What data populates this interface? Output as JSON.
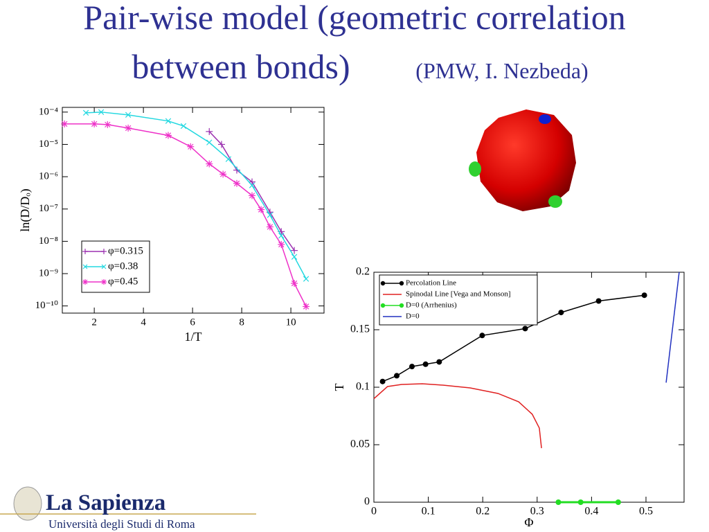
{
  "title_lines": [
    "Pair-wise model (geometric correlation",
    "between bonds)"
  ],
  "subtitle": "(PMW, I. Nezbeda)",
  "logo": {
    "name": "La Sapienza",
    "subtitle": "Università degli Studi di Roma"
  },
  "chart_data": [
    {
      "type": "line",
      "y_label": "ln(D/Dₒ)",
      "x_label": "1/T",
      "ylog": true,
      "legend": "lower left",
      "xlim": [
        0.7,
        11.35
      ],
      "xticks": [
        2,
        4,
        6,
        8,
        10
      ],
      "ylim": [
        6e-11,
        0.00014
      ],
      "yticks": [
        {
          "value": 1e-10,
          "label": "10⁻¹⁰"
        },
        {
          "value": 1e-09,
          "label": "10⁻⁹"
        },
        {
          "value": 1e-08,
          "label": "10⁻⁸"
        },
        {
          "value": 1e-07,
          "label": "10⁻⁷"
        },
        {
          "value": 1e-06,
          "label": "10⁻⁶"
        },
        {
          "value": 1e-05,
          "label": "10⁻⁵"
        },
        {
          "value": 0.0001,
          "label": "10⁻⁴"
        }
      ],
      "series": [
        {
          "name": "φ=0.315",
          "color": "#9b30b0",
          "marker": "plus",
          "x": [
            6.68,
            7.18,
            7.8,
            8.42,
            9.15,
            9.61,
            10.14
          ],
          "values": [
            2.5e-05,
            1e-05,
            1.6e-06,
            6.9e-07,
            8e-08,
            2e-08,
            5.2e-09
          ]
        },
        {
          "name": "φ=0.38",
          "color": "#22d8e0",
          "marker": "cross",
          "x": [
            1.66,
            2.28,
            3.38,
            5.01,
            5.63,
            6.68,
            7.46,
            8.42,
            9.15,
            9.61,
            10.14,
            10.62
          ],
          "values": [
            9.5e-05,
            0.0001,
            8.2e-05,
            5.3e-05,
            3.7e-05,
            1.15e-05,
            3.5e-06,
            5.4e-07,
            6.5e-08,
            1.5e-08,
            3.3e-09,
            6.9e-10
          ]
        },
        {
          "name": "φ=0.45",
          "color": "#ee30c8",
          "marker": "star",
          "x": [
            0.79,
            2,
            2.54,
            3.38,
            5.01,
            5.92,
            6.68,
            7.24,
            7.8,
            8.42,
            8.79,
            9.15,
            9.61,
            10.14,
            10.62
          ],
          "values": [
            4.3e-05,
            4.3e-05,
            4.1e-05,
            3.2e-05,
            1.9e-05,
            8.5e-06,
            2.5e-06,
            1.2e-06,
            6.2e-07,
            2.6e-07,
            9.6e-08,
            2.8e-08,
            8e-09,
            5e-10,
            9.6e-11
          ]
        }
      ]
    },
    {
      "type": "line",
      "y_label": "T",
      "x_label": "Φ",
      "legend": "upper left",
      "xlim": [
        0,
        0.57
      ],
      "xticks": [
        0,
        0.1,
        0.2,
        0.3,
        0.4,
        0.5
      ],
      "ylim": [
        0,
        0.2
      ],
      "yticks": [
        0,
        0.05,
        0.1,
        0.15,
        0.2
      ],
      "series": [
        {
          "name": "Percolation Line",
          "color": "#000000",
          "marker": "circle",
          "x": [
            0.016,
            0.042,
            0.07,
            0.095,
            0.12,
            0.199,
            0.278,
            0.344,
            0.413,
            0.497
          ],
          "values": [
            0.105,
            0.11,
            0.118,
            0.12,
            0.122,
            0.145,
            0.151,
            0.165,
            0.175,
            0.18
          ]
        },
        {
          "name": "Spinodal Line [Vega and Monson]",
          "color": "#e02020",
          "x": [
            0,
            0.025,
            0.051,
            0.089,
            0.127,
            0.177,
            0.228,
            0.266,
            0.291,
            0.304,
            0.308
          ],
          "values": [
            0.09,
            0.1006,
            0.1024,
            0.103,
            0.1018,
            0.0994,
            0.0946,
            0.0873,
            0.0765,
            0.0645,
            0.047
          ]
        },
        {
          "name": "D=0 (Arrhenius)",
          "color": "#22dd22",
          "marker": "circle",
          "x": [
            0.339,
            0.38,
            0.449
          ],
          "values": [
            0,
            0,
            0
          ]
        },
        {
          "name": "D=0",
          "color": "#2030c0",
          "x": [
            0.537,
            0.561
          ],
          "values": [
            0.104,
            0.2
          ]
        }
      ]
    }
  ]
}
